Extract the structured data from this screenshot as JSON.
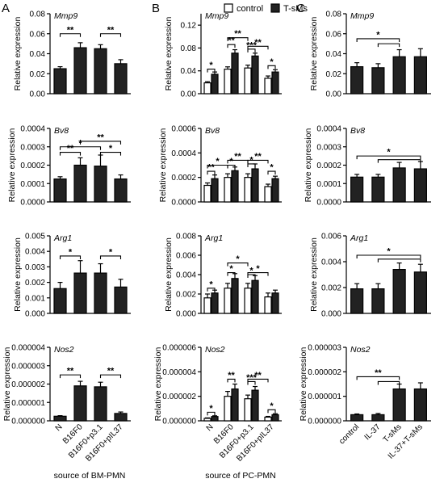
{
  "panel_letters": [
    "A",
    "B",
    "C"
  ],
  "legend": {
    "control": "control",
    "treated": "T-sMs"
  },
  "source_labels": [
    "source of BM-PMN",
    "source of PC-PMN"
  ],
  "chart_data": [
    {
      "id": "A-Mmp9",
      "type": "bar",
      "panel": "A",
      "gene": "Mmp9",
      "ylabel": "Relative expression",
      "ylim": [
        0,
        0.08
      ],
      "yticks": [
        "0.00",
        "0.02",
        "0.04",
        "0.06",
        "0.08"
      ],
      "categories": [
        "N",
        "B16F0",
        "B16F0+p3.1",
        "B16F0+pIL37"
      ],
      "series": [
        {
          "values": [
            0.025,
            0.046,
            0.045,
            0.03
          ],
          "errors": [
            0.002,
            0.005,
            0.004,
            0.004
          ]
        }
      ],
      "significance": [
        {
          "from": 0,
          "to": 1,
          "label": "**",
          "y": 0.06
        },
        {
          "from": 2,
          "to": 3,
          "label": "**",
          "y": 0.06
        }
      ]
    },
    {
      "id": "A-Bv8",
      "type": "bar",
      "panel": "A",
      "gene": "Bv8",
      "ylabel": "Relative expression",
      "ylim": [
        0,
        0.0004
      ],
      "yticks": [
        "0.0000",
        "0.0001",
        "0.0002",
        "0.0003",
        "0.0004"
      ],
      "categories": [
        "N",
        "B16F0",
        "B16F0+p3.1",
        "B16F0+pIL37"
      ],
      "series": [
        {
          "values": [
            0.000125,
            0.0002,
            0.000195,
            0.000125
          ],
          "errors": [
            1.2e-05,
            4e-05,
            6e-05,
            2.2e-05
          ]
        }
      ],
      "significance": [
        {
          "from": 0,
          "to": 1,
          "label": "**",
          "y": 0.00027
        },
        {
          "from": 0,
          "to": 2,
          "label": "*",
          "y": 0.0003
        },
        {
          "from": 1,
          "to": 3,
          "label": "**",
          "y": 0.00033
        },
        {
          "from": 2,
          "to": 3,
          "label": "*",
          "y": 0.00027
        }
      ]
    },
    {
      "id": "A-Arg1",
      "type": "bar",
      "panel": "A",
      "gene": "Arg1",
      "ylabel": "Relative expression",
      "ylim": [
        0,
        0.005
      ],
      "yticks": [
        "0.000",
        "0.001",
        "0.002",
        "0.003",
        "0.004",
        "0.005"
      ],
      "categories": [
        "N",
        "B16F0",
        "B16F0+p3.1",
        "B16F0+pIL37"
      ],
      "series": [
        {
          "values": [
            0.0016,
            0.0026,
            0.0026,
            0.0017
          ],
          "errors": [
            0.0004,
            0.0008,
            0.0006,
            0.0005
          ]
        }
      ],
      "significance": [
        {
          "from": 0,
          "to": 1,
          "label": "*",
          "y": 0.0037
        },
        {
          "from": 2,
          "to": 3,
          "label": "*",
          "y": 0.0037
        }
      ]
    },
    {
      "id": "A-Nos2",
      "type": "bar",
      "panel": "A",
      "gene": "Nos2",
      "ylabel": "Relative expression",
      "ylim": [
        0,
        4e-06
      ],
      "yticks": [
        "0.000000",
        "0.000001",
        "0.000002",
        "0.000003",
        "0.000004"
      ],
      "categories": [
        "N",
        "B16F0",
        "B16F0+p3.1",
        "B16F0+pIL37"
      ],
      "series": [
        {
          "values": [
            2.5e-07,
            1.9e-06,
            1.85e-06,
            4e-07
          ],
          "errors": [
            3e-08,
            2.5e-07,
            2.5e-07,
            8e-08
          ]
        }
      ],
      "significance": [
        {
          "from": 0,
          "to": 1,
          "label": "**",
          "y": 2.5e-06
        },
        {
          "from": 2,
          "to": 3,
          "label": "**",
          "y": 2.5e-06
        }
      ]
    },
    {
      "id": "B-Mmp9",
      "type": "bar",
      "panel": "B",
      "gene": "Mmp9",
      "ylabel": "Relative expression",
      "ylim": [
        0,
        0.14
      ],
      "yticks": [
        "0.00",
        "0.04",
        "0.08",
        "0.12"
      ],
      "categories": [
        "N",
        "B16F0",
        "B16F0+p3.1",
        "B16F0+pIL37"
      ],
      "series": [
        {
          "name": "control",
          "values": [
            0.019,
            0.043,
            0.045,
            0.027
          ],
          "errors": [
            0.002,
            0.004,
            0.005,
            0.004
          ]
        },
        {
          "name": "T-sMs",
          "values": [
            0.034,
            0.071,
            0.066,
            0.038
          ],
          "errors": [
            0.004,
            0.006,
            0.005,
            0.004
          ]
        }
      ],
      "significance": [
        {
          "from": 0,
          "to": 0.5,
          "label": "*",
          "y": 0.043
        },
        {
          "from": 1,
          "to": 1.5,
          "label": "**",
          "y": 0.086
        },
        {
          "from": 1,
          "to": 2,
          "label": "**",
          "y": 0.098
        },
        {
          "from": 2,
          "to": 2.5,
          "label": "***",
          "y": 0.078
        },
        {
          "from": 2,
          "to": 3,
          "label": "**",
          "y": 0.083
        },
        {
          "from": 3,
          "to": 3.5,
          "label": "*",
          "y": 0.049
        }
      ]
    },
    {
      "id": "B-Bv8",
      "type": "bar",
      "panel": "B",
      "gene": "Bv8",
      "ylabel": "Relative expression",
      "ylim": [
        0,
        0.0006
      ],
      "yticks": [
        "0.0000",
        "0.0002",
        "0.0004",
        "0.0006"
      ],
      "categories": [
        "N",
        "B16F0",
        "B16F0+p3.1",
        "B16F0+pIL37"
      ],
      "series": [
        {
          "name": "control",
          "values": [
            0.000135,
            0.0002,
            0.0002,
            0.000125
          ],
          "errors": [
            2e-05,
            3e-05,
            3e-05,
            2e-05
          ]
        },
        {
          "name": "T-sMs",
          "values": [
            0.00019,
            0.000255,
            0.00027,
            0.00019
          ],
          "errors": [
            3e-05,
            3e-05,
            4e-05,
            2e-05
          ]
        }
      ],
      "significance": [
        {
          "from": 0,
          "to": 0.5,
          "label": "**",
          "y": 0.00025
        },
        {
          "from": 0,
          "to": 1,
          "label": "*",
          "y": 0.0003
        },
        {
          "from": 1,
          "to": 2,
          "label": "**",
          "y": 0.00034
        },
        {
          "from": 1,
          "to": 1.5,
          "label": "*",
          "y": 0.0003
        },
        {
          "from": 2,
          "to": 2.5,
          "label": "*",
          "y": 0.00031
        },
        {
          "from": 2,
          "to": 3,
          "label": "**",
          "y": 0.00034
        },
        {
          "from": 3,
          "to": 3.5,
          "label": "*",
          "y": 0.00025
        }
      ]
    },
    {
      "id": "B-Arg1",
      "type": "bar",
      "panel": "B",
      "gene": "Arg1",
      "ylabel": "Relative expression",
      "ylim": [
        0,
        0.008
      ],
      "yticks": [
        "0.000",
        "0.002",
        "0.004",
        "0.006",
        "0.008"
      ],
      "categories": [
        "N",
        "B16F0",
        "B16F0+p3.1",
        "B16F0+pIL37"
      ],
      "series": [
        {
          "name": "control",
          "values": [
            0.0016,
            0.0026,
            0.0026,
            0.0017
          ],
          "errors": [
            0.0004,
            0.0005,
            0.0005,
            0.0004
          ]
        },
        {
          "name": "T-sMs",
          "values": [
            0.0021,
            0.0036,
            0.0034,
            0.0021
          ],
          "errors": [
            0.0003,
            0.0005,
            0.0005,
            0.0003
          ]
        }
      ],
      "significance": [
        {
          "from": 0,
          "to": 0.5,
          "label": "*",
          "y": 0.0026
        },
        {
          "from": 1,
          "to": 1.5,
          "label": "*",
          "y": 0.0042
        },
        {
          "from": 1,
          "to": 2,
          "label": "*",
          "y": 0.0052
        },
        {
          "from": 2,
          "to": 2.5,
          "label": "*",
          "y": 0.004
        },
        {
          "from": 2,
          "to": 3,
          "label": "*",
          "y": 0.0042
        }
      ]
    },
    {
      "id": "B-Nos2",
      "type": "bar",
      "panel": "B",
      "gene": "Nos2",
      "ylabel": "Relative expression",
      "ylim": [
        0,
        6e-06
      ],
      "yticks": [
        "0.000000",
        "0.000002",
        "0.000004",
        "0.000006"
      ],
      "categories": [
        "N",
        "B16F0",
        "B16F0+p3.1",
        "B16F0+pIL37"
      ],
      "series": [
        {
          "name": "control",
          "values": [
            2e-07,
            2e-06,
            1.8e-06,
            3e-07
          ],
          "errors": [
            4e-08,
            4e-07,
            3e-07,
            6e-08
          ]
        },
        {
          "name": "T-sMs",
          "values": [
            3.5e-07,
            2.6e-06,
            2.5e-06,
            5e-07
          ],
          "errors": [
            6e-08,
            4e-07,
            3e-07,
            8e-08
          ]
        }
      ],
      "significance": [
        {
          "from": 0,
          "to": 0.5,
          "label": "*",
          "y": 7e-07
        },
        {
          "from": 1,
          "to": 1.5,
          "label": "**",
          "y": 3.4e-06
        },
        {
          "from": 2,
          "to": 2.5,
          "label": "***",
          "y": 3.2e-06
        },
        {
          "from": 2,
          "to": 3,
          "label": "**",
          "y": 3.4e-06
        },
        {
          "from": 3,
          "to": 3.5,
          "label": "*",
          "y": 9e-07
        }
      ]
    },
    {
      "id": "C-Mmp9",
      "type": "bar",
      "panel": "C",
      "gene": "Mmp9",
      "ylabel": "Relative expression",
      "ylim": [
        0,
        0.08
      ],
      "yticks": [
        "0.00",
        "0.02",
        "0.04",
        "0.06",
        "0.08"
      ],
      "categories": [
        "control",
        "IL-37",
        "T-sMs",
        "IL-37+T-sMs"
      ],
      "series": [
        {
          "values": [
            0.027,
            0.026,
            0.037,
            0.037
          ],
          "errors": [
            0.004,
            0.004,
            0.007,
            0.008
          ]
        }
      ],
      "significance": [
        {
          "from": 0,
          "to": 2,
          "label": "*",
          "y": 0.055
        },
        {
          "from": 1,
          "to": 2,
          "label": "",
          "y": 0.05
        }
      ]
    },
    {
      "id": "C-Bv8",
      "type": "bar",
      "panel": "C",
      "gene": "Bv8",
      "ylabel": "Relative expression",
      "ylim": [
        0,
        0.0004
      ],
      "yticks": [
        "0.0000",
        "0.0001",
        "0.0002",
        "0.0003",
        "0.0004"
      ],
      "categories": [
        "control",
        "IL-37",
        "T-sMs",
        "IL-37+T-sMs"
      ],
      "series": [
        {
          "values": [
            0.000135,
            0.000135,
            0.000185,
            0.00018
          ],
          "errors": [
            1.5e-05,
            1.5e-05,
            3e-05,
            4e-05
          ]
        }
      ],
      "significance": [
        {
          "from": 0,
          "to": 3,
          "label": "*",
          "y": 0.00025
        },
        {
          "from": 1,
          "to": 3,
          "label": "",
          "y": 0.00023
        }
      ]
    },
    {
      "id": "C-Arg1",
      "type": "bar",
      "panel": "C",
      "gene": "Arg1",
      "ylabel": "Relative expression",
      "ylim": [
        0,
        0.006
      ],
      "yticks": [
        "0.000",
        "0.002",
        "0.004",
        "0.006"
      ],
      "categories": [
        "control",
        "IL-37",
        "T-sMs",
        "IL-37+T-sMs"
      ],
      "series": [
        {
          "values": [
            0.0019,
            0.0019,
            0.0034,
            0.0032
          ],
          "errors": [
            0.0004,
            0.0004,
            0.0005,
            0.0006
          ]
        }
      ],
      "significance": [
        {
          "from": 0,
          "to": 3,
          "label": "*",
          "y": 0.0045
        },
        {
          "from": 1,
          "to": 3,
          "label": "",
          "y": 0.0042
        }
      ]
    },
    {
      "id": "C-Nos2",
      "type": "bar",
      "panel": "C",
      "gene": "Nos2",
      "ylabel": "Relative expression",
      "ylim": [
        0,
        3e-06
      ],
      "yticks": [
        "0.000000",
        "0.000001",
        "0.000002",
        "0.000003"
      ],
      "categories": [
        "control",
        "IL-37",
        "T-sMs",
        "IL-37+T-sMs"
      ],
      "series": [
        {
          "values": [
            2.5e-07,
            2.5e-07,
            1.3e-06,
            1.3e-06
          ],
          "errors": [
            3e-08,
            5e-08,
            2e-07,
            2.5e-07
          ]
        }
      ],
      "significance": [
        {
          "from": 0,
          "to": 2,
          "label": "**",
          "y": 1.8e-06
        },
        {
          "from": 1,
          "to": 2,
          "label": "",
          "y": 1.6e-06
        }
      ]
    }
  ]
}
